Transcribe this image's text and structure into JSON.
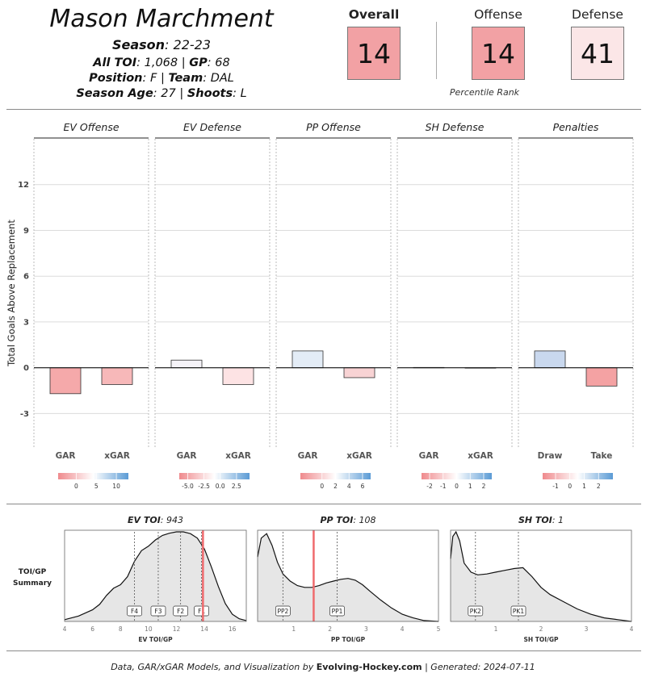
{
  "player": {
    "name": "Mason Marchment",
    "season_label": "Season",
    "season_value": ": 22-23",
    "toi_label": "All TOI",
    "toi_value": ": 1,068 | ",
    "gp_label": "GP",
    "gp_value": ": 68",
    "position_label": "Position",
    "position_value": ": F | ",
    "team_label": "Team",
    "team_value": ": DAL",
    "age_label": "Season Age",
    "age_value": ": 27 | ",
    "shoots_label": "Shoots",
    "shoots_value": ": L"
  },
  "ranks": {
    "caption": "Percentile Rank",
    "items": [
      {
        "label": "Overall",
        "value": "14",
        "color": "#f2a1a4",
        "bold": true
      },
      {
        "label": "Offense",
        "value": "14",
        "color": "#f2a1a4",
        "bold": false
      },
      {
        "label": "Defense",
        "value": "41",
        "color": "#fbe6e7",
        "bold": false
      }
    ]
  },
  "chart_data": [
    {
      "type": "bar",
      "ylabel": "Total Goals Above Replacement",
      "ylim": [
        -5.2,
        15
      ],
      "yticks": [
        -3,
        0,
        3,
        6,
        9,
        12
      ],
      "panels": [
        {
          "title": "EV Offense",
          "categories": [
            "GAR",
            "xGAR"
          ],
          "values": [
            -1.7,
            -1.1
          ],
          "bar_colors": [
            "#f5a9aa",
            "#f7b8b9"
          ],
          "scale": {
            "min": -4.5,
            "max": 13,
            "ticks": [
              0,
              5,
              10
            ]
          }
        },
        {
          "title": "EV Defense",
          "categories": [
            "GAR",
            "xGAR"
          ],
          "values": [
            0.5,
            -1.1
          ],
          "bar_colors": [
            "#f5f3f8",
            "#fde3e4"
          ],
          "scale": {
            "min": -6.3,
            "max": 4.5,
            "ticks": [
              -5.0,
              -2.5,
              0.0,
              2.5
            ]
          }
        },
        {
          "title": "PP Offense",
          "categories": [
            "GAR",
            "xGAR"
          ],
          "values": [
            1.1,
            -0.65
          ],
          "bar_colors": [
            "#e3ecf6",
            "#f8d3d4"
          ],
          "scale": {
            "min": -3.2,
            "max": 7.2,
            "ticks": [
              0,
              2,
              4,
              6
            ]
          }
        },
        {
          "title": "SH Defense",
          "categories": [
            "GAR",
            "xGAR"
          ],
          "values": [
            0.02,
            0.0
          ],
          "bar_colors": [
            "#ffffff",
            "#ffffff"
          ],
          "scale": {
            "min": -2.6,
            "max": 2.6,
            "ticks": [
              -2,
              -1,
              0,
              1,
              2
            ]
          }
        },
        {
          "title": "Penalties",
          "categories": [
            "Draw",
            "Take"
          ],
          "values": [
            1.1,
            -1.2
          ],
          "bar_colors": [
            "#c9d8ee",
            "#f4a2a3"
          ],
          "scale": {
            "min": -1.9,
            "max": 3.0,
            "ticks": [
              -1,
              0,
              1,
              2
            ]
          }
        }
      ]
    },
    {
      "type": "area",
      "summary_label": [
        "TOI/GP",
        "Summary"
      ],
      "panels": [
        {
          "title_label": "EV TOI",
          "title_value": ": 943",
          "xlabel": "EV TOI/GP",
          "xlim": [
            4,
            17
          ],
          "xticks": [
            4,
            6,
            8,
            10,
            12,
            14,
            16
          ],
          "x": [
            4,
            5,
            6,
            6.5,
            7,
            7.5,
            8,
            8.5,
            9,
            9.5,
            10,
            10.5,
            11,
            11.5,
            12,
            12.5,
            13,
            13.5,
            14,
            14.5,
            15,
            15.5,
            16,
            16.5,
            17
          ],
          "density": [
            0.02,
            0.06,
            0.13,
            0.19,
            0.29,
            0.37,
            0.41,
            0.5,
            0.67,
            0.79,
            0.84,
            0.91,
            0.96,
            0.985,
            1.0,
            1.0,
            0.98,
            0.93,
            0.81,
            0.61,
            0.39,
            0.2,
            0.08,
            0.03,
            0.01
          ],
          "markers": [
            {
              "label": "F4",
              "x": 9.0
            },
            {
              "label": "F3",
              "x": 10.7
            },
            {
              "label": "F2",
              "x": 12.3
            },
            {
              "label": "F1",
              "x": 13.8
            }
          ],
          "player_value": 13.9
        },
        {
          "title_label": "PP TOI",
          "title_value": ": 108",
          "xlabel": "PP TOI/GP",
          "xlim": [
            0,
            5
          ],
          "xticks": [
            1,
            2,
            3,
            4,
            5
          ],
          "x": [
            0,
            0.1,
            0.25,
            0.4,
            0.55,
            0.7,
            0.9,
            1.1,
            1.3,
            1.5,
            1.7,
            1.9,
            2.1,
            2.3,
            2.5,
            2.7,
            2.9,
            3.1,
            3.4,
            3.7,
            4.0,
            4.3,
            4.6,
            5
          ],
          "density": [
            0.72,
            0.93,
            0.98,
            0.85,
            0.66,
            0.53,
            0.45,
            0.4,
            0.38,
            0.38,
            0.4,
            0.43,
            0.45,
            0.47,
            0.48,
            0.46,
            0.41,
            0.34,
            0.24,
            0.15,
            0.08,
            0.04,
            0.01,
            0.0
          ],
          "markers": [
            {
              "label": "PP2",
              "x": 0.7
            },
            {
              "label": "PP1",
              "x": 2.2
            }
          ],
          "player_value": 1.55
        },
        {
          "title_label": "SH TOI",
          "title_value": ": 1",
          "xlabel": "SH TOI/GP",
          "xlim": [
            0,
            4
          ],
          "xticks": [
            1,
            2,
            3,
            4
          ],
          "x": [
            0,
            0.05,
            0.12,
            0.2,
            0.3,
            0.45,
            0.6,
            0.8,
            1.0,
            1.2,
            1.4,
            1.6,
            1.8,
            2.0,
            2.2,
            2.5,
            2.8,
            3.1,
            3.4,
            3.7,
            4.0
          ],
          "density": [
            0.7,
            0.95,
            1.0,
            0.9,
            0.65,
            0.55,
            0.52,
            0.53,
            0.55,
            0.57,
            0.59,
            0.6,
            0.5,
            0.38,
            0.3,
            0.22,
            0.14,
            0.08,
            0.04,
            0.02,
            0.0
          ],
          "markers": [
            {
              "label": "PK2",
              "x": 0.55
            },
            {
              "label": "PK1",
              "x": 1.5
            }
          ],
          "player_value": null
        }
      ]
    }
  ],
  "footer": {
    "prefix": "Data, GAR/xGAR Models, and Visualization by ",
    "brand": "Evolving-Hockey.com",
    "suffix": " | Generated: 2024-07-11"
  }
}
